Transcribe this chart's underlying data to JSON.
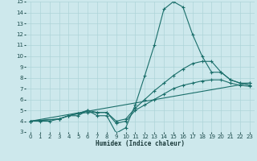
{
  "xlabel": "Humidex (Indice chaleur)",
  "bg_color": "#cde8ec",
  "line_color": "#1a6e6a",
  "grid_color": "#aed4d8",
  "xlim": [
    -0.5,
    23.5
  ],
  "ylim": [
    3,
    15
  ],
  "xticks": [
    0,
    1,
    2,
    3,
    4,
    5,
    6,
    7,
    8,
    9,
    10,
    11,
    12,
    13,
    14,
    15,
    16,
    17,
    18,
    19,
    20,
    21,
    22,
    23
  ],
  "yticks": [
    3,
    4,
    5,
    6,
    7,
    8,
    9,
    10,
    11,
    12,
    13,
    14,
    15
  ],
  "lines": [
    {
      "x": [
        0,
        1,
        2,
        3,
        4,
        5,
        6,
        7,
        8,
        9,
        10,
        11,
        12,
        13,
        14,
        15,
        16,
        17,
        18,
        19,
        20,
        21,
        22,
        23
      ],
      "y": [
        4,
        4,
        4,
        4.2,
        4.5,
        4.5,
        5,
        4.5,
        4.5,
        2.9,
        3.4,
        5.5,
        8.2,
        11,
        14.3,
        15,
        14.5,
        12,
        10,
        8.5,
        8.5,
        7.8,
        7.5,
        7.5
      ]
    },
    {
      "x": [
        0,
        3,
        4,
        5,
        6,
        7,
        8,
        9,
        10,
        11,
        12,
        13,
        14,
        15,
        16,
        17,
        18,
        19,
        20,
        21,
        22,
        23
      ],
      "y": [
        4,
        4.2,
        4.5,
        4.7,
        5,
        4.8,
        4.8,
        4,
        4.2,
        5.2,
        6,
        6.8,
        7.5,
        8.2,
        8.8,
        9.3,
        9.5,
        9.5,
        8.5,
        7.8,
        7.5,
        7.3
      ]
    },
    {
      "x": [
        0,
        23
      ],
      "y": [
        4,
        7.5
      ]
    },
    {
      "x": [
        0,
        3,
        4,
        5,
        6,
        7,
        8,
        9,
        10,
        11,
        12,
        13,
        14,
        15,
        16,
        17,
        18,
        19,
        20,
        21,
        22,
        23
      ],
      "y": [
        4,
        4.2,
        4.5,
        4.7,
        4.8,
        4.8,
        4.8,
        3.8,
        4,
        5,
        5.5,
        6,
        6.5,
        7,
        7.3,
        7.5,
        7.7,
        7.8,
        7.8,
        7.5,
        7.3,
        7.2
      ]
    }
  ]
}
